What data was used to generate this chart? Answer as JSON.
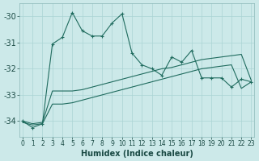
{
  "xlabel": "Humidex (Indice chaleur)",
  "background_color": "#cce9e9",
  "grid_color": "#aad4d4",
  "line_color": "#1f6b5e",
  "x_values": [
    0,
    1,
    2,
    3,
    4,
    5,
    6,
    7,
    8,
    9,
    10,
    11,
    12,
    13,
    14,
    15,
    16,
    17,
    18,
    19,
    20,
    21,
    22,
    23
  ],
  "series1_marked": [
    -34.0,
    -34.25,
    -34.1,
    -31.05,
    -30.8,
    -29.85,
    -30.55,
    -30.75,
    -30.75,
    -30.25,
    -29.9,
    -31.4,
    -31.85,
    -32.0,
    -32.25,
    -31.55,
    -31.75,
    -31.3,
    -32.35,
    -32.35,
    -32.35,
    -32.7,
    -32.4,
    -32.5
  ],
  "series2_straight_upper": [
    -34.0,
    -34.1,
    -34.05,
    -32.85,
    -32.85,
    -32.85,
    -32.8,
    -32.7,
    -32.6,
    -32.5,
    -32.4,
    -32.3,
    -32.2,
    -32.1,
    -32.0,
    -31.95,
    -31.85,
    -31.75,
    -31.65,
    -31.6,
    -31.55,
    -31.5,
    -31.45,
    -32.45
  ],
  "series3_straight_lower": [
    -34.05,
    -34.15,
    -34.1,
    -33.35,
    -33.35,
    -33.3,
    -33.2,
    -33.1,
    -33.0,
    -32.9,
    -32.8,
    -32.7,
    -32.6,
    -32.5,
    -32.4,
    -32.3,
    -32.2,
    -32.1,
    -32.0,
    -31.95,
    -31.9,
    -31.85,
    -32.75,
    -32.5
  ],
  "ylim_min": -34.6,
  "ylim_max": -29.5,
  "yticks": [
    -34,
    -33,
    -32,
    -31,
    -30
  ],
  "xtick_labels": [
    "0",
    "1",
    "2",
    "3",
    "4",
    "5",
    "6",
    "7",
    "8",
    "9",
    "10",
    "11",
    "12",
    "13",
    "14",
    "15",
    "16",
    "17",
    "18",
    "19",
    "20",
    "21",
    "22",
    "23"
  ],
  "xlabel_fontsize": 7,
  "ytick_fontsize": 7,
  "xtick_fontsize": 5.5,
  "linewidth": 0.8,
  "marker_size": 3.5
}
